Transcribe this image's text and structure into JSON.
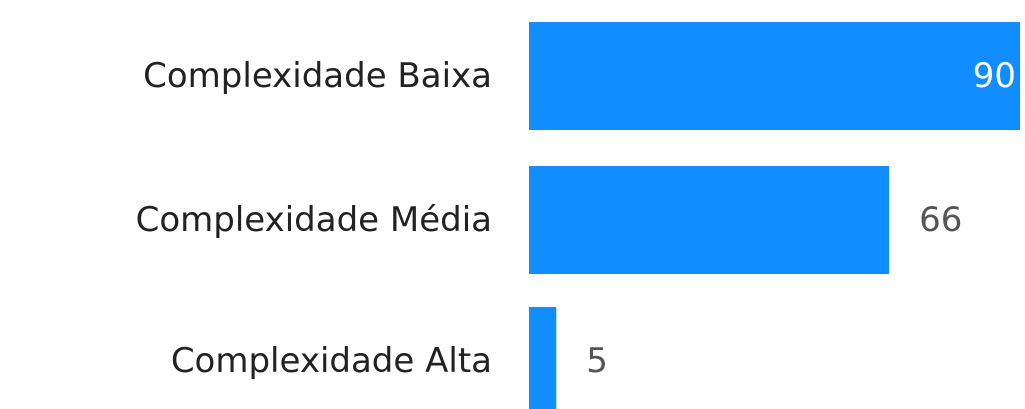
{
  "chart_data": {
    "type": "bar",
    "orientation": "horizontal",
    "categories": [
      "Complexidade Baixa",
      "Complexidade Média",
      "Complexidade Alta"
    ],
    "values": [
      90,
      66,
      5
    ],
    "color": "#118dff"
  }
}
